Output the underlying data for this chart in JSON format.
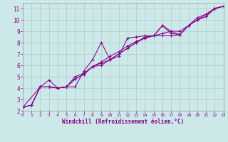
{
  "xlabel": "Windchill (Refroidissement éolien,°C)",
  "xlim": [
    0,
    23
  ],
  "ylim": [
    2,
    11.5
  ],
  "xticks": [
    0,
    1,
    2,
    3,
    4,
    5,
    6,
    7,
    8,
    9,
    10,
    11,
    12,
    13,
    14,
    15,
    16,
    17,
    18,
    19,
    20,
    21,
    22,
    23
  ],
  "yticks": [
    2,
    3,
    4,
    5,
    6,
    7,
    8,
    9,
    10,
    11
  ],
  "bg_color": "#cce8e8",
  "grid_color": "#aacccc",
  "line_color": "#880088",
  "series1_x": [
    0,
    1,
    2,
    3,
    4,
    5,
    6,
    7,
    8,
    9,
    10,
    11,
    12,
    13,
    14,
    15,
    16,
    17,
    18,
    19,
    20,
    21,
    22,
    23
  ],
  "series1_y": [
    2.3,
    2.5,
    4.1,
    4.7,
    4.0,
    4.1,
    4.1,
    5.5,
    6.5,
    8.0,
    6.5,
    6.8,
    8.4,
    8.5,
    8.6,
    8.6,
    9.5,
    9.0,
    8.7,
    9.5,
    10.2,
    10.5,
    11.0,
    11.2
  ],
  "series2_x": [
    0,
    1,
    2,
    3,
    4,
    5,
    6,
    7,
    8,
    9,
    10,
    11,
    12,
    13,
    14,
    15,
    16,
    17,
    18,
    19,
    20,
    21,
    22,
    23
  ],
  "series2_y": [
    2.3,
    2.5,
    4.1,
    4.1,
    4.0,
    4.1,
    4.8,
    5.2,
    5.9,
    6.2,
    6.5,
    7.0,
    7.5,
    8.0,
    8.4,
    8.6,
    8.6,
    8.6,
    8.7,
    9.5,
    10.0,
    10.3,
    11.0,
    11.2
  ],
  "series3_x": [
    0,
    2,
    3,
    4,
    5,
    6,
    7,
    8,
    9,
    10,
    11,
    12,
    13,
    14,
    15,
    16,
    17,
    18,
    19,
    20,
    22,
    23
  ],
  "series3_y": [
    2.3,
    4.1,
    4.1,
    4.0,
    4.1,
    5.0,
    5.3,
    5.9,
    6.0,
    6.5,
    7.0,
    7.5,
    8.0,
    8.5,
    8.6,
    9.5,
    8.8,
    8.7,
    9.5,
    10.0,
    11.0,
    11.2
  ],
  "series4_x": [
    0,
    1,
    2,
    3,
    4,
    5,
    6,
    7,
    8,
    9,
    10,
    11,
    12,
    13,
    14,
    15,
    16,
    17,
    18,
    19,
    20,
    21,
    22,
    23
  ],
  "series4_y": [
    2.3,
    2.5,
    4.1,
    4.1,
    4.0,
    4.1,
    4.8,
    5.2,
    5.9,
    6.3,
    6.8,
    7.2,
    7.7,
    8.1,
    8.4,
    8.6,
    8.8,
    9.0,
    9.0,
    9.5,
    10.0,
    10.3,
    11.0,
    11.2
  ]
}
